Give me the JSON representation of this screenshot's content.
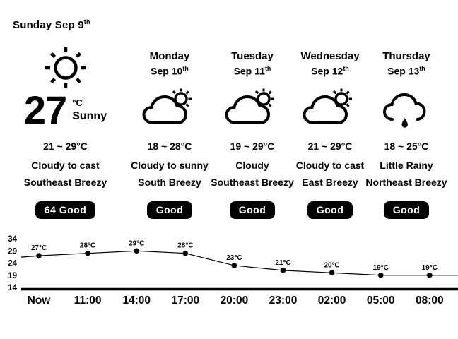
{
  "header": {
    "date_main": "Sunday Sep 9",
    "date_sup": "th"
  },
  "today": {
    "icon": "sun-icon",
    "temp": "27",
    "temp_unit": "°C",
    "condition": "Sunny",
    "range": "21 ~ 29°C",
    "forecast": "Cloudy to cast",
    "wind": "Southeast Breezy",
    "badge": "64 Good"
  },
  "days": [
    {
      "name": "Monday",
      "date_main": "Sep 10",
      "date_sup": "th",
      "icon": "cloud-sun-icon",
      "range": "18 ~ 28°C",
      "forecast": "Cloudy to sunny",
      "wind": "South Breezy",
      "badge": "Good"
    },
    {
      "name": "Tuesday",
      "date_main": "Sep 11",
      "date_sup": "th",
      "icon": "cloud-sun-icon",
      "range": "19 ~ 29°C",
      "forecast": "Cloudy",
      "wind": "Southeast Breezy",
      "badge": "Good"
    },
    {
      "name": "Wednesday",
      "date_main": "Sep 12",
      "date_sup": "th",
      "icon": "cloud-sun-icon",
      "range": "21 ~ 29°C",
      "forecast": "Cloudy to cast",
      "wind": "East Breezy",
      "badge": "Good"
    },
    {
      "name": "Thursday",
      "date_main": "Sep 13",
      "date_sup": "th",
      "icon": "cloud-rain-icon",
      "range": "18 ~ 25°C",
      "forecast": "Little Rainy",
      "wind": "Northeast Breezy",
      "badge": "Good"
    }
  ],
  "colors": {
    "text": "#000000",
    "background": "#ffffff",
    "badge_bg": "#000000",
    "badge_text": "#ffffff",
    "chart_line": "#000000"
  },
  "chart_data": {
    "type": "line",
    "x": [
      "Now",
      "11:00",
      "14:00",
      "17:00",
      "20:00",
      "23:00",
      "02:00",
      "05:00",
      "08:00"
    ],
    "values": [
      27,
      28,
      29,
      28,
      23,
      21,
      20,
      19,
      19
    ],
    "point_labels": [
      "27°C",
      "28°C",
      "29°C",
      "28°C",
      "23°C",
      "21°C",
      "20°C",
      "19°C",
      "19°C"
    ],
    "yticks": [
      34,
      29,
      24,
      19,
      14
    ],
    "ylim": [
      14,
      34
    ],
    "title": "",
    "xlabel": "",
    "ylabel": "",
    "grid": false,
    "legend": "none",
    "line_color": "#000000",
    "marker": "filled-dot"
  }
}
